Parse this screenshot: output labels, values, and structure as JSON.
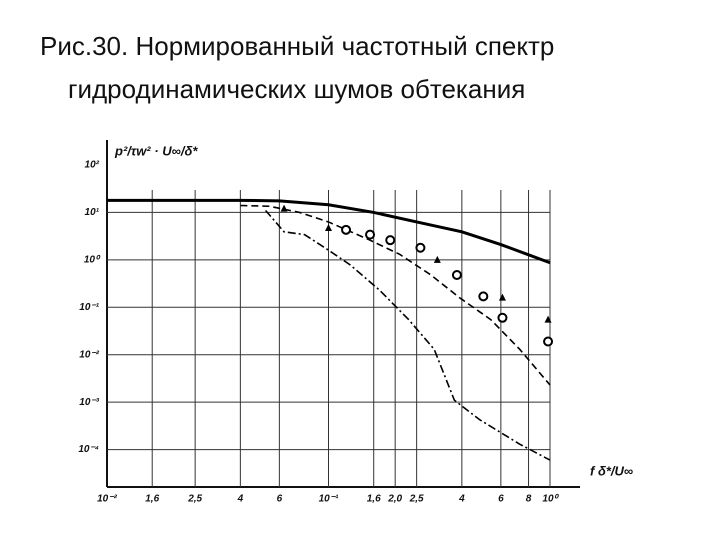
{
  "chart_data": {
    "type": "line",
    "title": [
      "Рис.30. Нормированный частотный спектр",
      "гидродинамических шумов обтекания"
    ],
    "x_label": "f δ*/U∞",
    "y_label": "p²/τw² · U∞/δ*",
    "xlog": true,
    "ylog": true,
    "grid": true,
    "xlim": [
      0.01,
      1
    ],
    "ylim": [
      1e-05,
      100
    ],
    "xticks": [
      {
        "value": 0.01,
        "label": "10⁻²"
      },
      {
        "value": 0.016,
        "label": "1,6"
      },
      {
        "value": 0.025,
        "label": "2,5"
      },
      {
        "value": 0.04,
        "label": "4"
      },
      {
        "value": 0.06,
        "label": "6"
      },
      {
        "value": 0.1,
        "label": "10⁻¹"
      },
      {
        "value": 0.16,
        "label": "1,6"
      },
      {
        "value": 0.2,
        "label": "2,0"
      },
      {
        "value": 0.25,
        "label": "2,5"
      },
      {
        "value": 0.4,
        "label": "4"
      },
      {
        "value": 0.6,
        "label": "6"
      },
      {
        "value": 0.8,
        "label": "8"
      },
      {
        "value": 1,
        "label": "10⁰"
      }
    ],
    "yticks": [
      {
        "value": 100,
        "label": "10²"
      },
      {
        "value": 10,
        "label": "10¹"
      },
      {
        "value": 1,
        "label": "10⁰"
      },
      {
        "value": 0.1,
        "label": "10⁻¹"
      },
      {
        "value": 0.01,
        "label": "10⁻²"
      },
      {
        "value": 0.001,
        "label": "10⁻³"
      },
      {
        "value": 0.0001,
        "label": "10⁻⁴"
      }
    ],
    "series": [
      {
        "color": "#000000",
        "style": "solid",
        "x": [
          0.01,
          0.04,
          0.06,
          0.1,
          0.16,
          0.25,
          0.4,
          0.6,
          1
        ],
        "values": [
          18,
          18,
          17.5,
          14.5,
          10,
          6.3,
          3.9,
          2.1,
          0.87
        ]
      },
      {
        "color": "#000000",
        "style": "dashed",
        "x": [
          0.04,
          0.054,
          0.074,
          0.1,
          0.154,
          0.21,
          0.29,
          0.39,
          0.54,
          0.73,
          1
        ],
        "values": [
          14,
          13.5,
          10,
          6.3,
          2.6,
          1.3,
          0.48,
          0.16,
          0.055,
          0.013,
          0.0023
        ]
      },
      {
        "color": "#000000",
        "style": "dashdot",
        "x": [
          0.052,
          0.063,
          0.078,
          0.1,
          0.125,
          0.17,
          0.23,
          0.3,
          0.37,
          0.48,
          0.73,
          1
        ],
        "values": [
          11,
          3.9,
          3.4,
          1.6,
          0.79,
          0.23,
          0.055,
          0.013,
          0.0011,
          0.00043,
          0.00013,
          6e-05
        ]
      },
      {
        "color": "#000000",
        "style": "circle",
        "x": [
          0.12,
          0.154,
          0.19,
          0.26,
          0.38,
          0.5,
          0.61,
          0.98
        ],
        "values": [
          4.3,
          3.4,
          2.6,
          1.8,
          0.48,
          0.17,
          0.06,
          0.019
        ]
      },
      {
        "color": "#000000",
        "style": "triangle",
        "x": [
          0.063,
          0.1,
          0.31,
          0.61,
          0.98
        ],
        "values": [
          12,
          4.7,
          1.0,
          0.16,
          0.055
        ]
      }
    ]
  }
}
